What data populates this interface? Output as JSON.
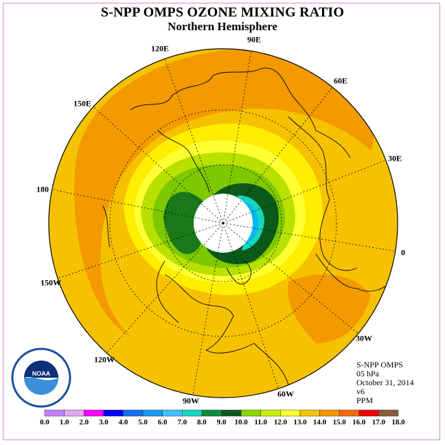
{
  "title": "S-NPP OMPS OZONE MIXING RATIO",
  "subtitle": "Northern Hemisphere",
  "logo_text": "NOAA",
  "info": {
    "instrument": "S-NPP OMPS",
    "level": "05 hPa",
    "date": "October 31, 2014",
    "version": "v6",
    "units": "PPM"
  },
  "longitude_labels": [
    "90E",
    "60E",
    "30E",
    "0",
    "30W",
    "60W",
    "90W",
    "120W",
    "150W",
    "180",
    "150E",
    "120E"
  ],
  "colorbar": {
    "ticks": [
      "0.0",
      "1.0",
      "2.0",
      "3.0",
      "4.0",
      "5.0",
      "6.0",
      "7.0",
      "8.0",
      "9.0",
      "10.0",
      "11.0",
      "12.0",
      "13.0",
      "14.0",
      "15.0",
      "16.0",
      "17.0",
      "18.0"
    ],
    "colors": [
      "#c080ff",
      "#e0a8f0",
      "#ff00ff",
      "#0000ff",
      "#1470f0",
      "#1898f0",
      "#40c0ff",
      "#19d6c0",
      "#108c3c",
      "#0b5a1a",
      "#8cd600",
      "#c8f000",
      "#ffff33",
      "#f6c200",
      "#f39a00",
      "#f56a10",
      "#ee0000",
      "#8b5a3c"
    ]
  }
}
